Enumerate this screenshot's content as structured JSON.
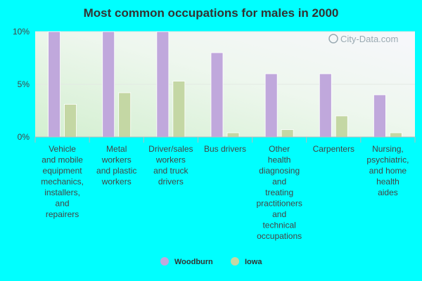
{
  "chart_data": {
    "type": "bar",
    "title": "Most common occupations for males in 2000",
    "categories": [
      [
        "Vehicle",
        "and mobile",
        "equipment",
        "mechanics,",
        "installers,",
        "and",
        "repairers"
      ],
      [
        "Metal",
        "workers",
        "and plastic",
        "workers"
      ],
      [
        "Driver/sales",
        "workers",
        "and truck",
        "drivers"
      ],
      [
        "Bus drivers"
      ],
      [
        "Other",
        "health",
        "diagnosing",
        "and",
        "treating",
        "practitioners",
        "and",
        "technical",
        "occupations"
      ],
      [
        "Carpenters"
      ],
      [
        "Nursing,",
        "psychiatric,",
        "and home",
        "health",
        "aides"
      ]
    ],
    "series": [
      {
        "name": "Woodburn",
        "color": "#c0a8dc",
        "values": [
          10,
          10,
          10,
          8,
          6,
          6,
          4
        ]
      },
      {
        "name": "Iowa",
        "color": "#c4d7a4",
        "values": [
          3.1,
          4.2,
          5.3,
          0.4,
          0.7,
          2.0,
          0.4
        ]
      }
    ],
    "ylim": [
      0,
      10
    ],
    "yticks": [
      0,
      5,
      10
    ],
    "ytick_labels": [
      "0%",
      "5%",
      "10%"
    ],
    "grid": true,
    "legend_position": "bottom",
    "watermark": "City-Data.com"
  }
}
